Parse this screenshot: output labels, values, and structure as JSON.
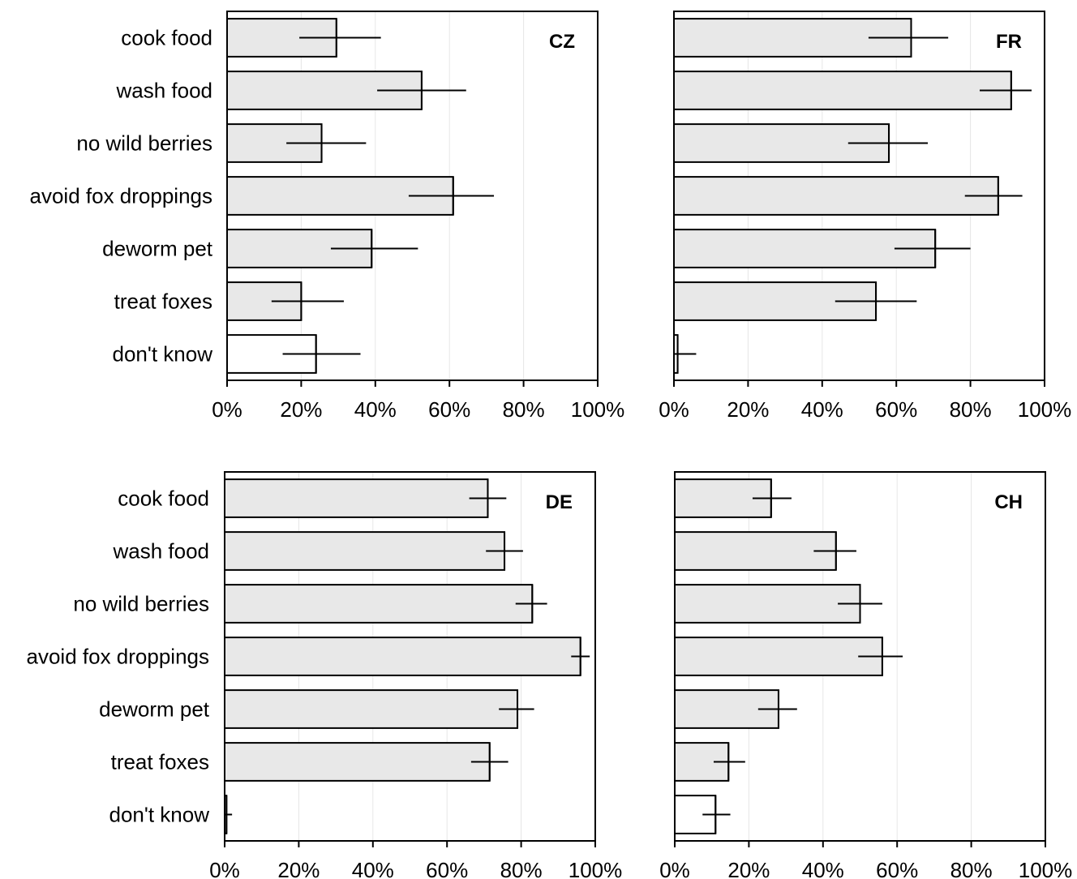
{
  "chart_data": [
    {
      "type": "bar",
      "orientation": "horizontal",
      "title": "CZ",
      "categories": [
        "cook food",
        "wash food",
        "no wild berries",
        "avoid fox droppings",
        "deworm pet",
        "treat foxes",
        "don't know"
      ],
      "values": [
        29.5,
        52.5,
        25.5,
        61,
        39,
        20,
        24
      ],
      "error_low": [
        19.5,
        40.5,
        16,
        49,
        28,
        12,
        15
      ],
      "error_high": [
        41.5,
        64.5,
        37.5,
        72,
        51.5,
        31.5,
        36
      ],
      "xlim": [
        0,
        100
      ],
      "ticks": [
        "0%",
        "20%",
        "40%",
        "60%",
        "80%",
        "100%"
      ],
      "grid": true,
      "fill_colors": [
        "#e8e8e8",
        "#e8e8e8",
        "#e8e8e8",
        "#e8e8e8",
        "#e8e8e8",
        "#e8e8e8",
        "#ffffff"
      ]
    },
    {
      "type": "bar",
      "orientation": "horizontal",
      "title": "FR",
      "categories": [
        "cook food",
        "wash food",
        "no wild berries",
        "avoid fox droppings",
        "deworm pet",
        "treat foxes",
        "don't know"
      ],
      "values": [
        64,
        91,
        58,
        87.5,
        70.5,
        54.5,
        1
      ],
      "error_low": [
        52.5,
        82.5,
        47,
        78.5,
        59.5,
        43.5,
        0
      ],
      "error_high": [
        74,
        96.5,
        68.5,
        94,
        80,
        65.5,
        6
      ],
      "xlim": [
        0,
        100
      ],
      "ticks": [
        "0%",
        "20%",
        "40%",
        "60%",
        "80%",
        "100%"
      ],
      "grid": true,
      "fill_colors": [
        "#e8e8e8",
        "#e8e8e8",
        "#e8e8e8",
        "#e8e8e8",
        "#e8e8e8",
        "#e8e8e8",
        "#ffffff"
      ]
    },
    {
      "type": "bar",
      "orientation": "horizontal",
      "title": "DE",
      "categories": [
        "cook food",
        "wash food",
        "no wild berries",
        "avoid fox droppings",
        "deworm pet",
        "treat foxes",
        "don't know"
      ],
      "values": [
        71,
        75.5,
        83,
        96,
        79,
        71.5,
        0.5
      ],
      "error_low": [
        66,
        70.5,
        78.5,
        93.5,
        74,
        66.5,
        0
      ],
      "error_high": [
        76,
        80.5,
        87,
        98.5,
        83.5,
        76.5,
        2
      ],
      "xlim": [
        0,
        100
      ],
      "ticks": [
        "0%",
        "20%",
        "40%",
        "60%",
        "80%",
        "100%"
      ],
      "grid": true,
      "fill_colors": [
        "#e8e8e8",
        "#e8e8e8",
        "#e8e8e8",
        "#e8e8e8",
        "#e8e8e8",
        "#e8e8e8",
        "#ffffff"
      ]
    },
    {
      "type": "bar",
      "orientation": "horizontal",
      "title": "CH",
      "categories": [
        "cook food",
        "wash food",
        "no wild berries",
        "avoid fox droppings",
        "deworm pet",
        "treat foxes",
        "don't know"
      ],
      "values": [
        26,
        43.5,
        50,
        56,
        28,
        14.5,
        11
      ],
      "error_low": [
        21,
        37.5,
        44,
        49.5,
        22.5,
        10.5,
        7.5
      ],
      "error_high": [
        31.5,
        49,
        56,
        61.5,
        33,
        19,
        15
      ],
      "xlim": [
        0,
        100
      ],
      "ticks": [
        "0%",
        "20%",
        "40%",
        "60%",
        "80%",
        "100%"
      ],
      "grid": true,
      "fill_colors": [
        "#e8e8e8",
        "#e8e8e8",
        "#e8e8e8",
        "#e8e8e8",
        "#e8e8e8",
        "#e8e8e8",
        "#ffffff"
      ]
    }
  ]
}
